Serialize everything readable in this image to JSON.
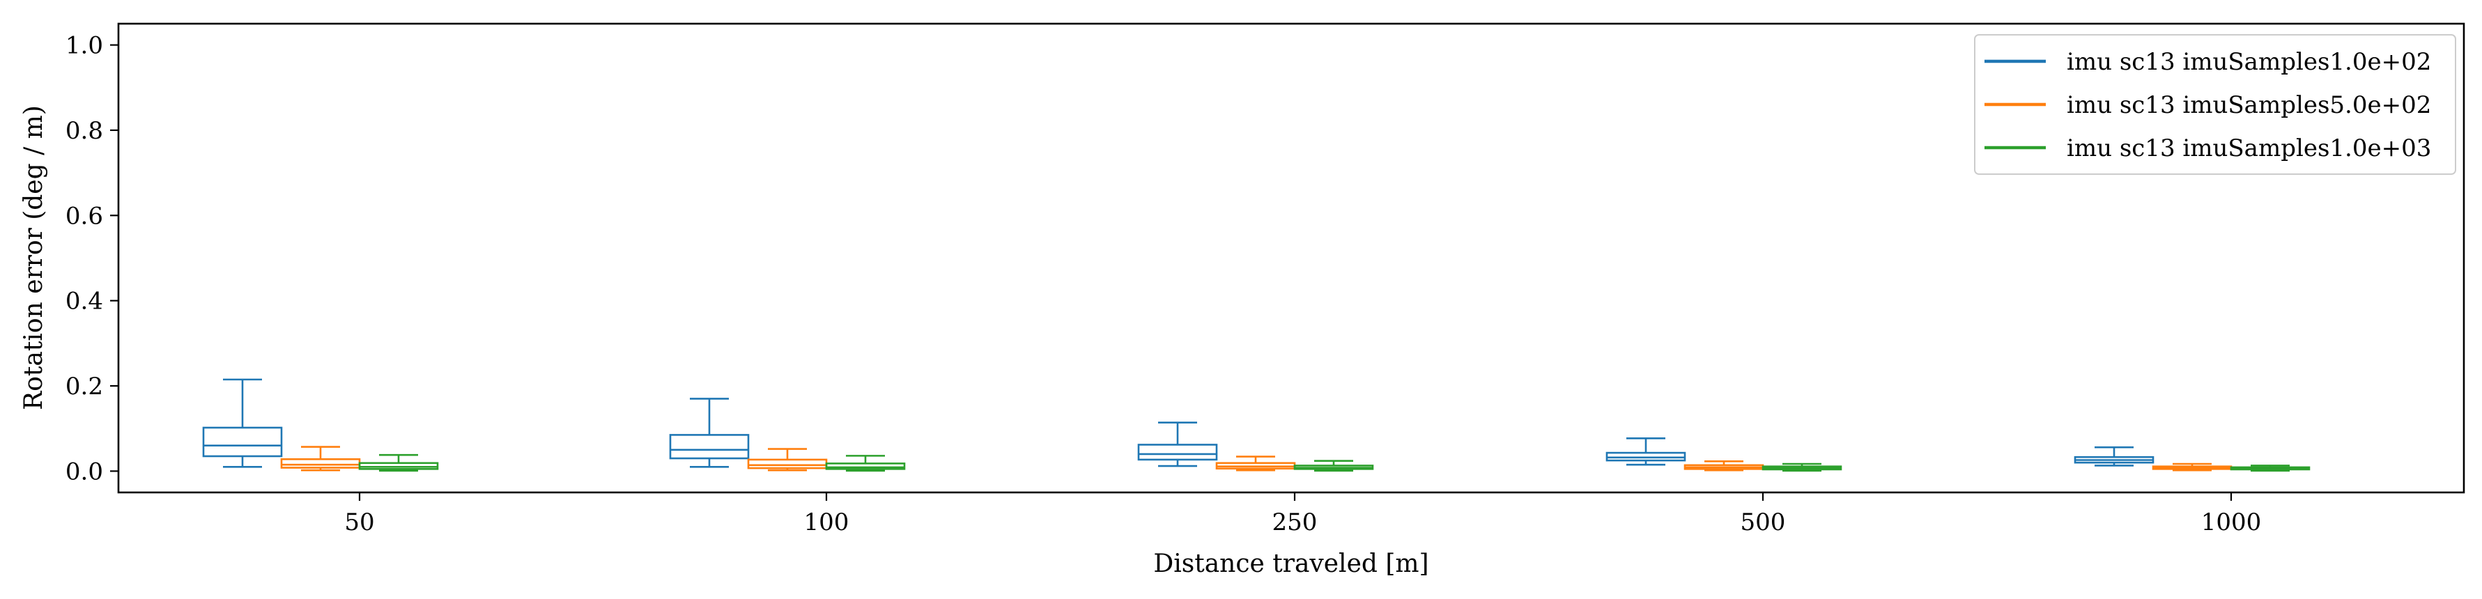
{
  "chart_data": {
    "type": "box",
    "title": "",
    "xlabel": "Distance traveled [m]",
    "ylabel": "Rotation error (deg / m)",
    "ylim": [
      -0.05,
      1.05
    ],
    "yticks": [
      0.0,
      0.2,
      0.4,
      0.6,
      0.8,
      1.0
    ],
    "ytick_labels": [
      "0.0",
      "0.2",
      "0.4",
      "0.6",
      "0.8",
      "1.0"
    ],
    "categories": [
      "50",
      "100",
      "250",
      "500",
      "1000"
    ],
    "legend_position": "top-right",
    "grid": false,
    "series": [
      {
        "name": "imu sc13 imuSamples1.0e+02",
        "color": "#1f77b4",
        "boxes": [
          {
            "whislo": 0.01,
            "q1": 0.035,
            "med": 0.06,
            "q3": 0.102,
            "whishi": 0.215
          },
          {
            "whislo": 0.01,
            "q1": 0.03,
            "med": 0.05,
            "q3": 0.085,
            "whishi": 0.17
          },
          {
            "whislo": 0.012,
            "q1": 0.027,
            "med": 0.04,
            "q3": 0.062,
            "whishi": 0.114
          },
          {
            "whislo": 0.015,
            "q1": 0.025,
            "med": 0.032,
            "q3": 0.043,
            "whishi": 0.077
          },
          {
            "whislo": 0.013,
            "q1": 0.02,
            "med": 0.026,
            "q3": 0.033,
            "whishi": 0.056
          }
        ]
      },
      {
        "name": "imu sc13 imuSamples5.0e+02",
        "color": "#ff7f0e",
        "boxes": [
          {
            "whislo": 0.002,
            "q1": 0.008,
            "med": 0.015,
            "q3": 0.028,
            "whishi": 0.057
          },
          {
            "whislo": 0.002,
            "q1": 0.007,
            "med": 0.014,
            "q3": 0.027,
            "whishi": 0.052
          },
          {
            "whislo": 0.002,
            "q1": 0.006,
            "med": 0.011,
            "q3": 0.019,
            "whishi": 0.034
          },
          {
            "whislo": 0.002,
            "q1": 0.005,
            "med": 0.009,
            "q3": 0.014,
            "whishi": 0.023
          },
          {
            "whislo": 0.002,
            "q1": 0.005,
            "med": 0.008,
            "q3": 0.011,
            "whishi": 0.017
          }
        ]
      },
      {
        "name": "imu sc13 imuSamples1.0e+03",
        "color": "#2ca02c",
        "boxes": [
          {
            "whislo": 0.001,
            "q1": 0.005,
            "med": 0.01,
            "q3": 0.019,
            "whishi": 0.038
          },
          {
            "whislo": 0.001,
            "q1": 0.005,
            "med": 0.009,
            "q3": 0.018,
            "whishi": 0.036
          },
          {
            "whislo": 0.001,
            "q1": 0.005,
            "med": 0.008,
            "q3": 0.013,
            "whishi": 0.024
          },
          {
            "whislo": 0.001,
            "q1": 0.004,
            "med": 0.007,
            "q3": 0.011,
            "whishi": 0.017
          },
          {
            "whislo": 0.001,
            "q1": 0.004,
            "med": 0.006,
            "q3": 0.009,
            "whishi": 0.013
          }
        ]
      }
    ]
  }
}
